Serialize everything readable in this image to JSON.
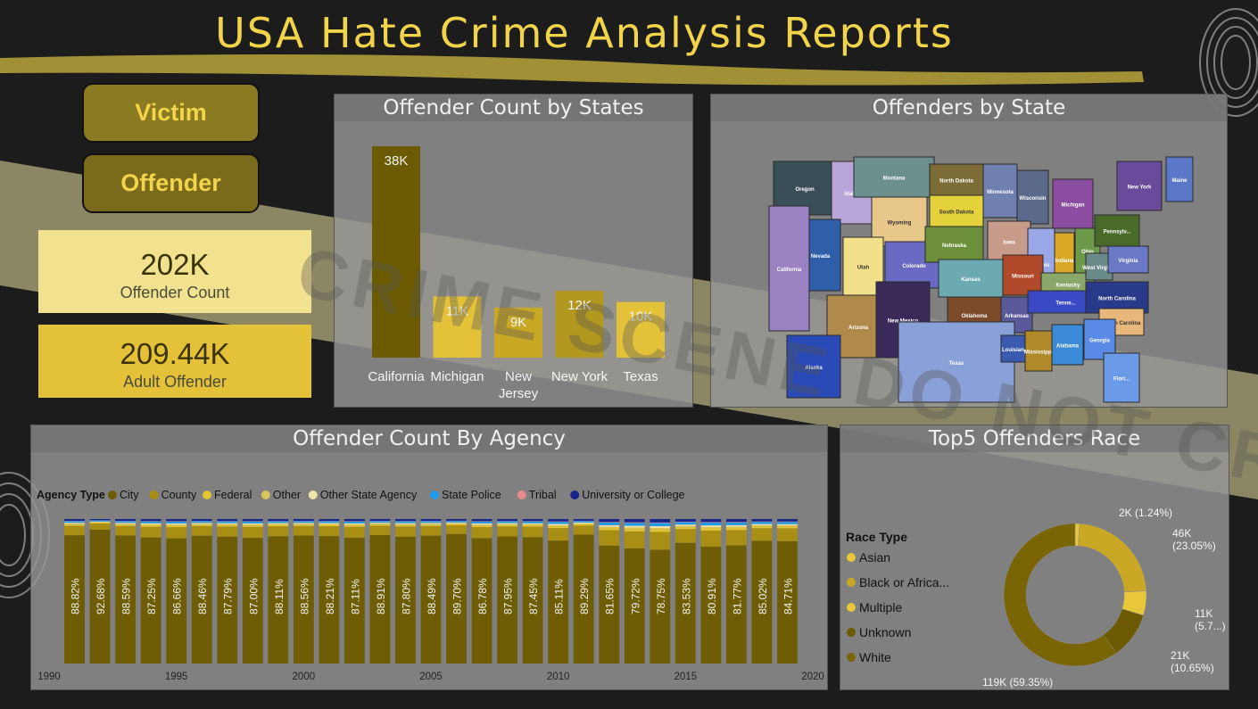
{
  "header": {
    "title": "USA Hate Crime Analysis Reports"
  },
  "nav": {
    "victim_label": "Victim",
    "offender_label": "Offender"
  },
  "kpis": [
    {
      "value": "202K",
      "label": "Offender Count"
    },
    {
      "value": "209.44K",
      "label": "Adult Offender"
    }
  ],
  "watermark": {
    "text": "CRIME SCENE DO NOT CROSS"
  },
  "colors": {
    "gold": "#f2d44a",
    "dark_olive": "#6b5a00",
    "olive": "#8a7410",
    "bar_states_top": "#6b5a00",
    "bar_states": "#e3c23a",
    "city": "#6e5d05",
    "county": "#a88f14",
    "federal": "#e2c332",
    "other": "#d9c55a",
    "other_state": "#f0e4a8",
    "state_police": "#1e9be8",
    "tribal": "#e88a8e",
    "university": "#18238a"
  },
  "states_chart": {
    "title": "Offender Count by States",
    "chart_data": {
      "type": "bar",
      "categories": [
        "California",
        "Michigan",
        "New Jersey",
        "New York",
        "Texas"
      ],
      "category_lines": [
        [
          "California"
        ],
        [
          "Michigan"
        ],
        [
          "New",
          "Jersey"
        ],
        [
          "New York"
        ],
        [
          "Texas"
        ]
      ],
      "values": [
        38000,
        11000,
        9000,
        12000,
        10000
      ],
      "data_labels": [
        "38K",
        "11K",
        "9K",
        "12K",
        "10K"
      ],
      "bar_colors": [
        "#6b5a00",
        "#e3c23a",
        "#c9a826",
        "#b39820",
        "#e3c23a"
      ]
    }
  },
  "map": {
    "title": "Offenders by State",
    "labels": [
      "Oregon",
      "Idaho",
      "Montana",
      "North Dakota",
      "Minnesota",
      "Wisconsin",
      "Michigan",
      "New York",
      "Maine",
      "Wyoming",
      "South Dakota",
      "Nevada",
      "California",
      "Utah",
      "Colorado",
      "Nebraska",
      "Iowa",
      "Illinois",
      "Indiana",
      "Ohio",
      "Pennsylv...",
      "Kansas",
      "Missouri",
      "Kentucky",
      "West Virginia",
      "Virginia",
      "Arizona",
      "New Mexico",
      "Oklahoma",
      "Arkansas",
      "Tenne...",
      "North Carolina",
      "South Carolina",
      "Texas",
      "Louisiana",
      "Mississippi",
      "Alabama",
      "Georgia",
      "Flori...",
      "Alaska"
    ]
  },
  "agency_chart": {
    "title": "Offender Count By Agency",
    "legend_title": "Agency Type",
    "legend": [
      "City",
      "County",
      "Federal",
      "Other",
      "Other State Agency",
      "State Police",
      "Tribal",
      "University or College"
    ],
    "chart_data": {
      "type": "bar",
      "stacked": "100%",
      "x": [
        1991,
        1992,
        1993,
        1994,
        1995,
        1996,
        1997,
        1998,
        1999,
        2000,
        2001,
        2002,
        2003,
        2004,
        2005,
        2006,
        2007,
        2008,
        2009,
        2010,
        2011,
        2012,
        2013,
        2014,
        2015,
        2016,
        2017,
        2018,
        2019
      ],
      "x_ticks": [
        "1990",
        "1995",
        "2000",
        "2005",
        "2010",
        "2015",
        "2020"
      ],
      "xlim": [
        1990,
        2020
      ],
      "city_pct": [
        88.82,
        92.68,
        88.59,
        87.25,
        86.66,
        88.46,
        87.79,
        87.0,
        88.11,
        88.56,
        88.21,
        87.11,
        88.91,
        87.8,
        88.49,
        89.7,
        86.78,
        87.95,
        87.45,
        85.11,
        89.29,
        81.65,
        79.72,
        78.75,
        83.53,
        80.91,
        81.77,
        85.02,
        84.71
      ],
      "city_labels": [
        "88.82%",
        "92.68%",
        "88.59%",
        "87.25%",
        "86.66%",
        "88.46%",
        "87.79%",
        "87.00%",
        "88.11%",
        "88.56%",
        "88.21%",
        "87.11%",
        "88.91%",
        "87.80%",
        "88.49%",
        "89.70%",
        "86.78%",
        "87.95%",
        "87.45%",
        "85.11%",
        "89.29%",
        "81.65%",
        "79.72%",
        "78.75%",
        "83.53%",
        "80.91%",
        "81.77%",
        "85.02%",
        "84.71%"
      ]
    }
  },
  "race_chart": {
    "title": "Top5 Offenders Race",
    "legend_title": "Race Type",
    "legend": [
      "Asian",
      "Black or Africa...",
      "Multiple",
      "Unknown",
      "White"
    ],
    "legend_colors": [
      "#e8c83a",
      "#c9a826",
      "#e8c83a",
      "#6b5a00",
      "#7a6505"
    ],
    "chart_data": {
      "type": "pie",
      "donut": true,
      "slices": [
        {
          "value": 2000,
          "label": "2K (1.24%)",
          "color": "#e8c83a",
          "pct": 1.24
        },
        {
          "value": 46000,
          "label": "46K (23.05%)",
          "color": "#c9a826",
          "pct": 23.05
        },
        {
          "value": 11000,
          "label": "11K (5.7...)",
          "color": "#e8c83a",
          "pct": 5.7
        },
        {
          "value": 21000,
          "label": "21K (10.65%)",
          "color": "#6b5a00",
          "pct": 10.65
        },
        {
          "value": 119000,
          "label": "119K (59.35%)",
          "color": "#7a6505",
          "pct": 59.35
        }
      ]
    }
  }
}
